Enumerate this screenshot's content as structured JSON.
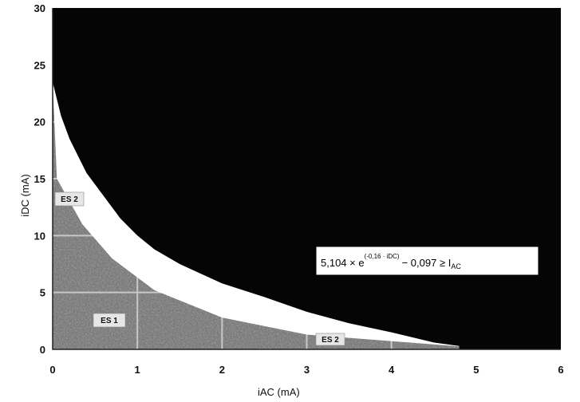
{
  "chart_data": {
    "type": "area",
    "xlabel": "iAC (mA)",
    "ylabel": "iDC (mA)",
    "xlim": [
      0,
      6
    ],
    "ylim": [
      0,
      30
    ],
    "x_ticks": [
      "0",
      "1",
      "2",
      "3",
      "4",
      "5",
      "6"
    ],
    "y_ticks": [
      "0",
      "5",
      "10",
      "15",
      "20",
      "25",
      "30"
    ],
    "grid": true,
    "boundary_curve": {
      "x": [
        4.8,
        4.5,
        4.0,
        3.5,
        3.0,
        2.5,
        2.0,
        1.5,
        1.2,
        1.0,
        0.8,
        0.6,
        0.4,
        0.2,
        0.1,
        0.0
      ],
      "y": [
        0.3,
        0.6,
        1.5,
        2.3,
        3.3,
        4.6,
        5.8,
        7.5,
        8.8,
        10.0,
        11.5,
        13.5,
        15.5,
        18.5,
        20.5,
        23.5
      ]
    },
    "annotation": {
      "base": "5,104 × e",
      "exponent": "(-0,16 · iDC)",
      "rhs": "− 0,097 ≥ I",
      "rhs_sub": "AC"
    },
    "region_labels": [
      "ES 1",
      "ES 2",
      "ES 2",
      "ES 2"
    ],
    "colors": {
      "upper_region": "#050505",
      "lower_region": "#6e6e6e",
      "boundary_gap": "#ffffff",
      "grid": "#c8c8c8"
    }
  }
}
